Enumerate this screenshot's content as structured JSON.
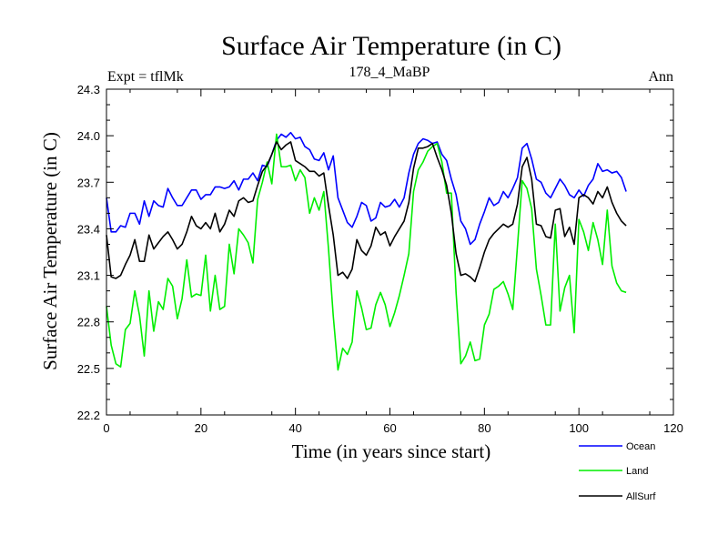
{
  "chart_data": {
    "type": "line",
    "title": "Surface Air Temperature (in C)",
    "subtitle": "178_4_MaBP",
    "left_label": "Expt = tflMk",
    "right_label": "Ann",
    "xlabel": "Time (in years since start)",
    "ylabel": "Surface Air Temperature (in C)",
    "xlim": [
      0,
      120
    ],
    "ylim": [
      22.2,
      24.3
    ],
    "xticks": [
      0,
      20,
      40,
      60,
      80,
      100,
      120
    ],
    "yticks": [
      22.2,
      22.5,
      22.8,
      23.1,
      23.4,
      23.7,
      24.0,
      24.3
    ],
    "ytick_labels": [
      "22.2",
      "22.5",
      "22.8",
      "23.1",
      "23.4",
      "23.7",
      "24.0",
      "24.3"
    ],
    "legend_position": "bottom-right",
    "series": [
      {
        "name": "Ocean",
        "color": "#0000ff",
        "values": [
          23.6,
          23.38,
          23.38,
          23.42,
          23.41,
          23.5,
          23.5,
          23.43,
          23.58,
          23.48,
          23.58,
          23.55,
          23.54,
          23.66,
          23.6,
          23.55,
          23.55,
          23.6,
          23.65,
          23.65,
          23.59,
          23.62,
          23.62,
          23.67,
          23.67,
          23.66,
          23.67,
          23.71,
          23.65,
          23.72,
          23.72,
          23.76,
          23.71,
          23.81,
          23.8,
          23.88,
          23.97,
          24.01,
          23.99,
          24.02,
          23.98,
          23.99,
          23.93,
          23.91,
          23.85,
          23.84,
          23.89,
          23.78,
          23.87,
          23.6,
          23.52,
          23.44,
          23.41,
          23.48,
          23.57,
          23.55,
          23.45,
          23.47,
          23.57,
          23.54,
          23.55,
          23.59,
          23.54,
          23.6,
          23.76,
          23.88,
          23.95,
          23.98,
          23.97,
          23.95,
          23.96,
          23.88,
          23.84,
          23.72,
          23.62,
          23.45,
          23.4,
          23.3,
          23.33,
          23.43,
          23.51,
          23.6,
          23.55,
          23.57,
          23.64,
          23.6,
          23.66,
          23.73,
          23.92,
          23.95,
          23.85,
          23.72,
          23.7,
          23.63,
          23.6,
          23.66,
          23.72,
          23.68,
          23.62,
          23.6,
          23.65,
          23.61,
          23.68,
          23.72,
          23.82,
          23.77,
          23.78,
          23.76,
          23.77,
          23.73,
          23.64
        ]
      },
      {
        "name": "Land",
        "color": "#00ee00",
        "values": [
          22.9,
          22.65,
          22.53,
          22.51,
          22.75,
          22.79,
          23.0,
          22.84,
          22.58,
          23.0,
          22.74,
          22.93,
          22.88,
          23.08,
          23.03,
          22.82,
          22.95,
          23.2,
          22.96,
          22.98,
          22.97,
          23.23,
          22.87,
          23.1,
          22.88,
          22.9,
          23.3,
          23.11,
          23.4,
          23.36,
          23.31,
          23.18,
          23.59,
          23.7,
          23.83,
          23.69,
          24.01,
          23.8,
          23.8,
          23.81,
          23.71,
          23.78,
          23.73,
          23.5,
          23.6,
          23.52,
          23.64,
          23.27,
          22.84,
          22.49,
          22.63,
          22.59,
          22.67,
          23.0,
          22.89,
          22.75,
          22.76,
          22.91,
          22.99,
          22.91,
          22.77,
          22.86,
          22.97,
          23.1,
          23.24,
          23.64,
          23.78,
          23.83,
          23.9,
          23.93,
          23.95,
          23.83,
          23.63,
          23.63,
          22.99,
          22.53,
          22.58,
          22.67,
          22.55,
          22.56,
          22.78,
          22.85,
          23.01,
          23.03,
          23.06,
          22.98,
          22.88,
          23.29,
          23.71,
          23.66,
          23.53,
          23.14,
          22.97,
          22.78,
          22.78,
          23.43,
          22.87,
          23.02,
          23.1,
          22.73,
          23.46,
          23.38,
          23.26,
          23.44,
          23.33,
          23.17,
          23.52,
          23.16,
          23.05,
          23.0,
          22.99
        ]
      },
      {
        "name": "AllSurf",
        "color": "#000000",
        "values": [
          23.36,
          23.09,
          23.08,
          23.1,
          23.17,
          23.23,
          23.33,
          23.19,
          23.19,
          23.36,
          23.27,
          23.31,
          23.35,
          23.38,
          23.33,
          23.27,
          23.3,
          23.38,
          23.48,
          23.42,
          23.4,
          23.44,
          23.4,
          23.5,
          23.38,
          23.43,
          23.52,
          23.48,
          23.58,
          23.6,
          23.57,
          23.58,
          23.68,
          23.77,
          23.81,
          23.88,
          23.96,
          23.91,
          23.94,
          23.96,
          23.84,
          23.82,
          23.8,
          23.77,
          23.77,
          23.74,
          23.76,
          23.55,
          23.36,
          23.1,
          23.12,
          23.08,
          23.14,
          23.33,
          23.26,
          23.23,
          23.29,
          23.41,
          23.36,
          23.38,
          23.29,
          23.35,
          23.4,
          23.45,
          23.57,
          23.79,
          23.92,
          23.92,
          23.93,
          23.95,
          23.86,
          23.78,
          23.68,
          23.5,
          23.24,
          23.1,
          23.11,
          23.09,
          23.06,
          23.15,
          23.25,
          23.33,
          23.37,
          23.4,
          23.43,
          23.41,
          23.43,
          23.56,
          23.8,
          23.86,
          23.72,
          23.43,
          23.42,
          23.35,
          23.34,
          23.52,
          23.53,
          23.35,
          23.41,
          23.3,
          23.6,
          23.62,
          23.6,
          23.56,
          23.64,
          23.6,
          23.67,
          23.57,
          23.5,
          23.45,
          23.42
        ]
      }
    ]
  }
}
